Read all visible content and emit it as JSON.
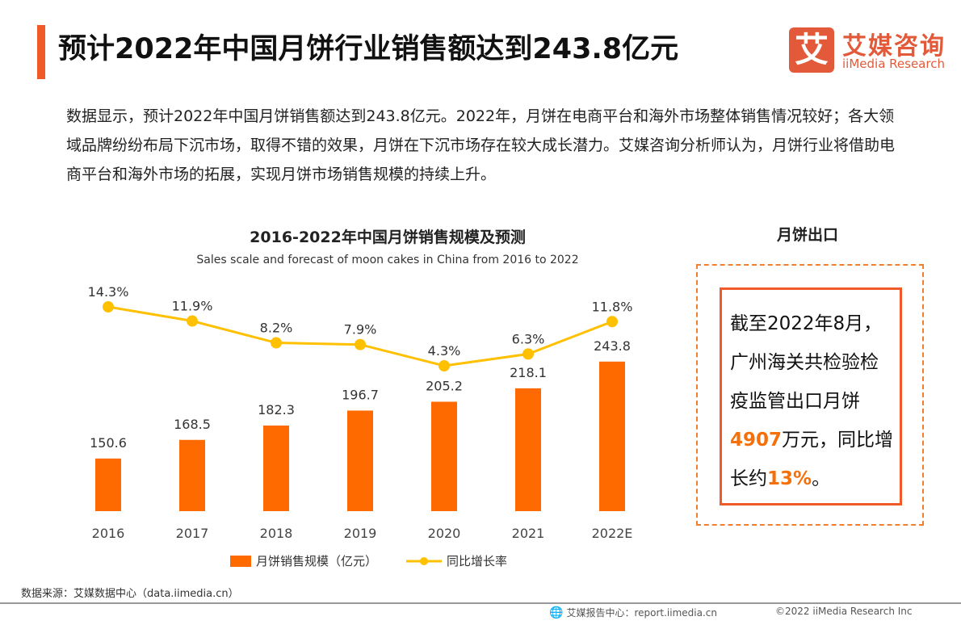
{
  "header": {
    "title": "预计2022年中国月饼行业销售额达到243.8亿元",
    "logo_mark": "艾",
    "logo_cn": "艾媒咨询",
    "logo_en": "iiMedia Research",
    "accent_color": "#f05a28"
  },
  "intro": "数据显示，预计2022年中国月饼销售额达到243.8亿元。2022年，月饼在电商平台和海外市场整体销售情况较好；各大领域品牌纷纷布局下沉市场，取得不错的效果，月饼在下沉市场存在较大成长潜力。艾媒咨询分析师认为，月饼行业将借助电商平台和海外市场的拓展，实现月饼市场销售规模的持续上升。",
  "chart_data": {
    "type": "bar+line",
    "title": "2016-2022年中国月饼销售规模及预测",
    "subtitle": "Sales scale and forecast of moon cakes in China from 2016 to 2022",
    "categories": [
      "2016",
      "2017",
      "2018",
      "2019",
      "2020",
      "2021",
      "2022E"
    ],
    "series": [
      {
        "name": "月饼销售规模（亿元）",
        "type": "bar",
        "color": "#ff6a00",
        "values": [
          150.6,
          168.5,
          182.3,
          196.7,
          205.2,
          218.1,
          243.8
        ],
        "labels": [
          "150.6",
          "168.5",
          "182.3",
          "196.7",
          "205.2",
          "218.1",
          "243.8"
        ]
      },
      {
        "name": "同比增长率",
        "type": "line",
        "color": "#ffc000",
        "values": [
          14.3,
          11.9,
          8.2,
          7.9,
          4.3,
          6.3,
          11.8
        ],
        "labels": [
          "14.3%",
          "11.9%",
          "8.2%",
          "7.9%",
          "4.3%",
          "6.3%",
          "11.8%"
        ]
      }
    ],
    "legend": "bottom",
    "grid": false
  },
  "side": {
    "title": "月饼出口",
    "text_1": "截至2022年8月，广州海关共检验检疫监管出口月饼",
    "value_1": "4907",
    "text_2": "万元，同比增长约",
    "value_2": "13%",
    "text_3": "。"
  },
  "footer": {
    "source": "数据来源：艾媒数据中心（data.iimedia.cn）",
    "report": "艾媒报告中心：report.iimedia.cn",
    "copyright": "©2022 iiMedia Research Inc"
  }
}
